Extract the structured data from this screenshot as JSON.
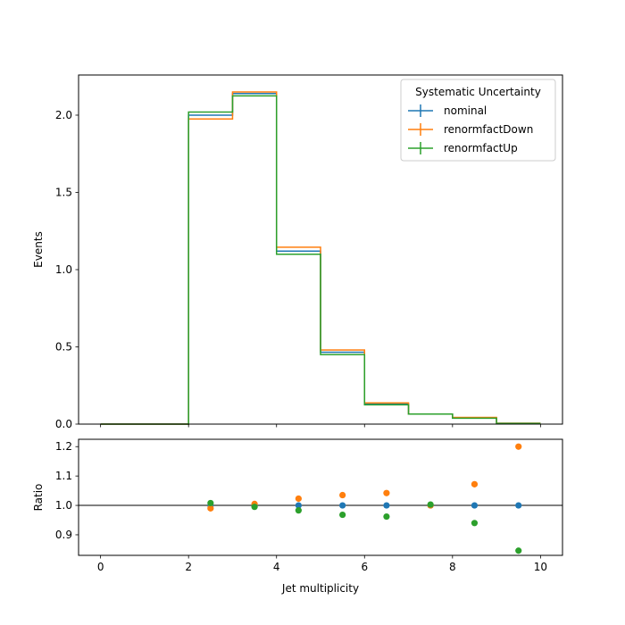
{
  "chart_data": [
    {
      "type": "line",
      "ylabel": "Events",
      "xlim": [
        -0.5,
        10.5
      ],
      "ylim": [
        0,
        2.26
      ],
      "yticks": [
        0.0,
        0.5,
        1.0,
        1.5,
        2.0
      ],
      "ytick_labels": [
        "0.0",
        "0.5",
        "1.0",
        "1.5",
        "2.0"
      ],
      "bin_edges": [
        0,
        1,
        2,
        3,
        4,
        5,
        6,
        7,
        8,
        9,
        10
      ],
      "legend": {
        "title": "Systematic Uncertainty",
        "placement": "top-right"
      },
      "grid": false,
      "series": [
        {
          "name": "nominal",
          "color": "#1f77b4",
          "values": [
            0,
            0,
            2.0,
            2.14,
            1.12,
            0.465,
            0.13,
            0.065,
            0.04,
            0.005
          ]
        },
        {
          "name": "renormfactDown",
          "color": "#ff7f0e",
          "values": [
            0,
            0,
            1.975,
            2.15,
            1.145,
            0.48,
            0.137,
            0.065,
            0.043,
            0.006
          ]
        },
        {
          "name": "renormfactUp",
          "color": "#2ca02c",
          "values": [
            0,
            0,
            2.02,
            2.125,
            1.1,
            0.45,
            0.125,
            0.065,
            0.038,
            0.004
          ]
        }
      ]
    },
    {
      "type": "scatter",
      "xlabel": "Jet multiplicity",
      "ylabel": "Ratio",
      "xlim": [
        -0.5,
        10.5
      ],
      "ylim": [
        0.83,
        1.225
      ],
      "xticks": [
        0,
        2,
        4,
        6,
        8,
        10
      ],
      "xtick_labels": [
        "0",
        "2",
        "4",
        "6",
        "8",
        "10"
      ],
      "yticks": [
        0.9,
        1.0,
        1.1,
        1.2
      ],
      "ytick_labels": [
        "0.9",
        "1.0",
        "1.1",
        "1.2"
      ],
      "reference_line": 1.0,
      "x": [
        2.5,
        3.5,
        4.5,
        5.5,
        6.5,
        7.5,
        8.5,
        9.5
      ],
      "series": [
        {
          "name": "nominal",
          "color": "#1f77b4",
          "values": [
            1.0,
            1.0,
            1.0,
            1.0,
            1.0,
            1.0,
            1.0,
            1.0
          ]
        },
        {
          "name": "renormfactDown",
          "color": "#ff7f0e",
          "values": [
            0.99,
            1.005,
            1.023,
            1.035,
            1.042,
            1.0,
            1.072,
            1.2
          ]
        },
        {
          "name": "renormfactUp",
          "color": "#2ca02c",
          "values": [
            1.008,
            0.995,
            0.983,
            0.968,
            0.962,
            1.003,
            0.94,
            0.846
          ]
        }
      ]
    }
  ]
}
